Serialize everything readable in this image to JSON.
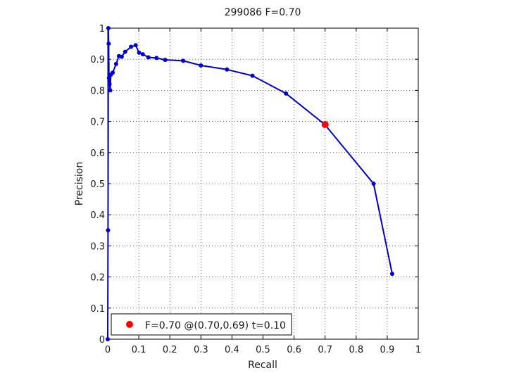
{
  "chart_data": {
    "type": "line",
    "title": "299086 F=0.70",
    "xlabel": "Recall",
    "ylabel": "Precision",
    "xlim": [
      0,
      1
    ],
    "ylim": [
      0,
      1
    ],
    "xticks": [
      0,
      0.1,
      0.2,
      0.3,
      0.4,
      0.5,
      0.6,
      0.7,
      0.8,
      0.9,
      1
    ],
    "yticks": [
      0,
      0.1,
      0.2,
      0.3,
      0.4,
      0.5,
      0.6,
      0.7,
      0.8,
      0.9,
      1
    ],
    "xtick_labels": [
      "0",
      "0.1",
      "0.2",
      "0.3",
      "0.4",
      "0.5",
      "0.6",
      "0.7",
      "0.8",
      "0.9",
      "1"
    ],
    "ytick_labels": [
      "0",
      "0.1",
      "0.2",
      "0.3",
      "0.4",
      "0.5",
      "0.6",
      "0.7",
      "0.8",
      "0.9",
      "1"
    ],
    "grid": true,
    "line_color": "#0000cc",
    "highlight_color": "#ff0000",
    "series": [
      {
        "x": [
          0.916,
          0.856,
          0.699,
          0.574,
          0.466,
          0.384,
          0.3,
          0.243,
          0.185,
          0.157,
          0.131,
          0.113,
          0.101,
          0.09,
          0.075,
          0.056,
          0.045,
          0.036,
          0.027,
          0.016,
          0.01,
          0.008,
          0.006,
          0.004,
          0.003,
          0.002,
          0.001,
          0.0
        ],
        "y": [
          0.21,
          0.5,
          0.69,
          0.79,
          0.847,
          0.867,
          0.88,
          0.895,
          0.898,
          0.904,
          0.906,
          0.916,
          0.921,
          0.945,
          0.94,
          0.924,
          0.908,
          0.91,
          0.885,
          0.857,
          0.85,
          0.8,
          0.82,
          0.84,
          0.95,
          1.0,
          0.35,
          0.0
        ]
      }
    ],
    "highlight_point": {
      "x": 0.7,
      "y": 0.69
    },
    "legend": {
      "position": "bottom-left",
      "label": "F=0.70 @(0.70,0.69) t=0.10"
    }
  }
}
